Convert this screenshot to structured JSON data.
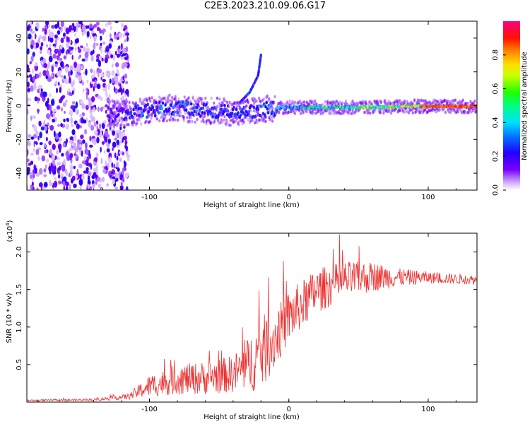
{
  "title": "C2E3.2023.210.09.06.G17",
  "chart_data": [
    {
      "type": "heatmap",
      "xlabel": "Height of straight line (km)",
      "ylabel": "Frequency (Hz)",
      "xlim": [
        -188,
        135
      ],
      "ylim": [
        -50,
        50
      ],
      "xticks": [
        -100,
        0,
        100
      ],
      "yticks": [
        -40,
        -20,
        0,
        20,
        40
      ],
      "colorbar": {
        "label": "Normalized spectral amplitude",
        "range": [
          0.0,
          1.0
        ],
        "ticks": [
          "0.0",
          "0.2",
          "0.4",
          "0.6",
          "0.8"
        ],
        "tick_values": [
          0.0,
          0.2,
          0.4,
          0.6,
          0.8
        ],
        "colormap": "rainbow (purple → blue → cyan → green → yellow → orange → red → magenta)"
      },
      "noise_region_x": [
        -188,
        -115
      ],
      "signal_ridge": [
        {
          "x": -125,
          "y": -5,
          "amp": 0.15
        },
        {
          "x": -110,
          "y": -4,
          "amp": 0.25
        },
        {
          "x": -95,
          "y": -2,
          "amp": 0.3
        },
        {
          "x": -80,
          "y": -1,
          "amp": 0.3
        },
        {
          "x": -65,
          "y": -3,
          "amp": 0.25
        },
        {
          "x": -50,
          "y": -3,
          "amp": 0.25
        },
        {
          "x": -35,
          "y": -5,
          "amp": 0.25
        },
        {
          "x": -20,
          "y": -2,
          "amp": 0.3
        },
        {
          "x": 0,
          "y": -1,
          "amp": 0.4
        },
        {
          "x": 20,
          "y": -1,
          "amp": 0.5
        },
        {
          "x": 40,
          "y": -1,
          "amp": 0.55
        },
        {
          "x": 60,
          "y": -1,
          "amp": 0.6
        },
        {
          "x": 80,
          "y": -0.5,
          "amp": 0.65
        },
        {
          "x": 100,
          "y": -0.5,
          "amp": 0.75
        },
        {
          "x": 120,
          "y": -0.5,
          "amp": 0.85
        },
        {
          "x": 135,
          "y": -0.5,
          "amp": 0.9
        }
      ],
      "drift_branch": [
        {
          "x": -35,
          "y": 2
        },
        {
          "x": -28,
          "y": 8
        },
        {
          "x": -22,
          "y": 18
        },
        {
          "x": -20,
          "y": 30
        }
      ]
    },
    {
      "type": "line",
      "xlabel": "Height of straight line (km)",
      "ylabel": "SNR (10 * v/v)",
      "yscale_label": "(x10",
      "yscale_exp": "4",
      "xlim": [
        -188,
        135
      ],
      "ylim": [
        0,
        22500
      ],
      "xticks": [
        -100,
        0,
        100
      ],
      "yticks": [
        5000,
        10000,
        15000,
        20000
      ],
      "ytick_labels": [
        "0.5",
        "1.0",
        "1.5",
        "2.0"
      ],
      "color": "#ee3333",
      "envelope": [
        {
          "x": -188,
          "mean": 200,
          "spread": 100
        },
        {
          "x": -140,
          "mean": 300,
          "spread": 150
        },
        {
          "x": -115,
          "mean": 700,
          "spread": 400
        },
        {
          "x": -100,
          "mean": 2000,
          "spread": 1500
        },
        {
          "x": -80,
          "mean": 2800,
          "spread": 2000
        },
        {
          "x": -60,
          "mean": 3000,
          "spread": 2200
        },
        {
          "x": -40,
          "mean": 3500,
          "spread": 2500
        },
        {
          "x": -30,
          "mean": 4500,
          "spread": 3500
        },
        {
          "x": -20,
          "mean": 6000,
          "spread": 5000
        },
        {
          "x": -10,
          "mean": 8000,
          "spread": 4000
        },
        {
          "x": 0,
          "mean": 11000,
          "spread": 3500
        },
        {
          "x": 20,
          "mean": 14500,
          "spread": 3000
        },
        {
          "x": 40,
          "mean": 16000,
          "spread": 2500
        },
        {
          "x": 60,
          "mean": 16500,
          "spread": 2000
        },
        {
          "x": 80,
          "mean": 16500,
          "spread": 1200
        },
        {
          "x": 100,
          "mean": 16500,
          "spread": 800
        },
        {
          "x": 135,
          "mean": 16200,
          "spread": 600
        }
      ]
    }
  ]
}
